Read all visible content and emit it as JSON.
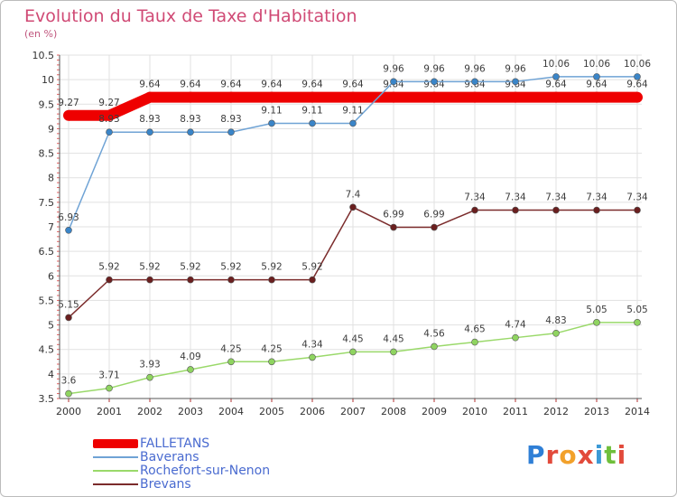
{
  "title": "Evolution du Taux de Taxe d'Habitation",
  "unit_label": "(en %)",
  "logo_text": "Proxiti",
  "chart_data": {
    "type": "line",
    "title": "Evolution du Taux de Taxe d'Habitation",
    "ylabel": "(en %)",
    "x": [
      "2000",
      "2001",
      "2002",
      "2003",
      "2004",
      "2005",
      "2006",
      "2007",
      "2008",
      "2009",
      "2010",
      "2011",
      "2012",
      "2013",
      "2014"
    ],
    "ylim": [
      3.5,
      10.5
    ],
    "yticks": [
      "3.5",
      "4",
      "4.5",
      "5",
      "5.5",
      "6",
      "6.5",
      "7",
      "7.5",
      "8",
      "8.5",
      "9",
      "9.5",
      "10",
      "10.5"
    ],
    "grid": true,
    "legend_position": "bottom-left",
    "series": [
      {
        "name": "FALLETANS",
        "color": "#ee0000",
        "values": [
          9.27,
          9.27,
          9.64,
          9.64,
          9.64,
          9.64,
          9.64,
          9.64,
          9.64,
          9.64,
          9.64,
          9.64,
          9.64,
          9.64,
          9.64
        ]
      },
      {
        "name": "Baverans",
        "color": "#6fa3d5",
        "values": [
          6.93,
          8.93,
          8.93,
          8.93,
          8.93,
          9.11,
          9.11,
          9.11,
          9.96,
          9.96,
          9.96,
          9.96,
          10.06,
          10.06,
          10.06
        ]
      },
      {
        "name": "Rochefort-sur-Nenon",
        "color": "#9ad96a",
        "values": [
          3.6,
          3.71,
          3.93,
          4.09,
          4.25,
          4.25,
          4.34,
          4.45,
          4.45,
          4.56,
          4.65,
          4.74,
          4.83,
          5.05,
          5.05
        ]
      },
      {
        "name": "Brevans",
        "color": "#7b2b2b",
        "values": [
          5.15,
          5.92,
          5.92,
          5.92,
          5.92,
          5.92,
          5.92,
          7.4,
          6.99,
          6.99,
          7.34,
          7.34,
          7.34,
          7.34,
          7.34
        ]
      }
    ]
  }
}
